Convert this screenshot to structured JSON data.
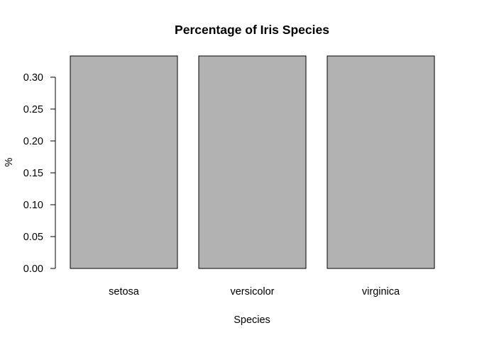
{
  "chart_data": {
    "type": "bar",
    "title": "Percentage of Iris Species",
    "xlabel": "Species",
    "ylabel": "%",
    "categories": [
      "setosa",
      "versicolor",
      "virginica"
    ],
    "values": [
      0.3333,
      0.3333,
      0.3333
    ],
    "ylim": [
      0,
      0.3333
    ],
    "yticks": [
      "0.00",
      "0.05",
      "0.10",
      "0.15",
      "0.20",
      "0.25",
      "0.30"
    ],
    "ytick_values": [
      0,
      0.05,
      0.1,
      0.15,
      0.2,
      0.25,
      0.3
    ],
    "grid": false,
    "legend": "none",
    "bar_color": "#b2b2b2"
  }
}
